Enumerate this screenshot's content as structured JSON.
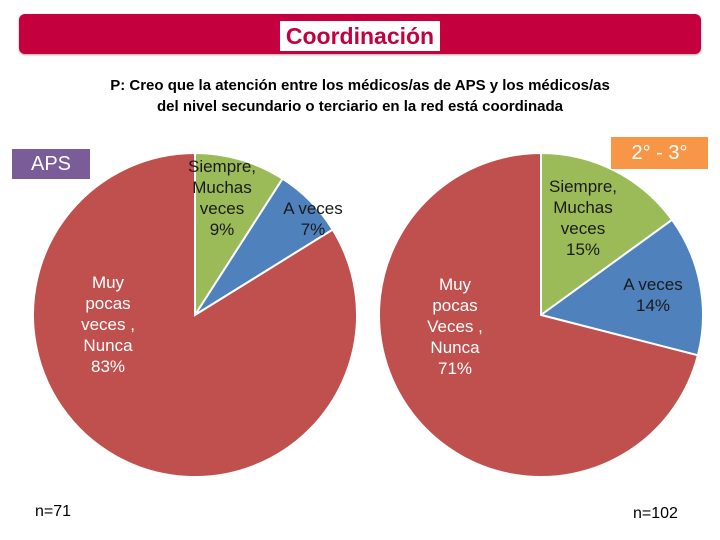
{
  "header": {
    "title": "Coordinación"
  },
  "question": {
    "line1": "P: Creo que la atención entre los médicos/as de APS y los médicos/as",
    "line2": "del nivel secundario o terciario en la red está coordinada"
  },
  "colors": {
    "banner": "#c4003f",
    "aps_label": "#7a5c98",
    "second_third_label": "#f79646",
    "siempre": "#9bbb59",
    "a_veces": "#4f81bd",
    "muy_pocas": "#c0504d"
  },
  "chart_data": [
    {
      "type": "pie",
      "title": "APS",
      "n": "n=71",
      "slices": [
        {
          "label": [
            "Siempre,",
            "Muchas",
            "veces",
            "9%"
          ],
          "value": 9,
          "color": "#9bbb59"
        },
        {
          "label": [
            "A veces",
            "7%"
          ],
          "value": 7,
          "color": "#4f81bd"
        },
        {
          "label": [
            "Muy",
            "pocas",
            "veces ,",
            "Nunca",
            "83%"
          ],
          "value": 83,
          "color": "#c0504d"
        }
      ]
    },
    {
      "type": "pie",
      "title": "2° - 3°",
      "n": "n=102",
      "slices": [
        {
          "label": [
            "Siempre,",
            "Muchas",
            "veces",
            "15%"
          ],
          "value": 15,
          "color": "#9bbb59"
        },
        {
          "label": [
            "A veces",
            "14%"
          ],
          "value": 14,
          "color": "#4f81bd"
        },
        {
          "label": [
            "Muy",
            "pocas",
            "Veces ,",
            "Nunca",
            "71%"
          ],
          "value": 71,
          "color": "#c0504d"
        }
      ]
    }
  ]
}
